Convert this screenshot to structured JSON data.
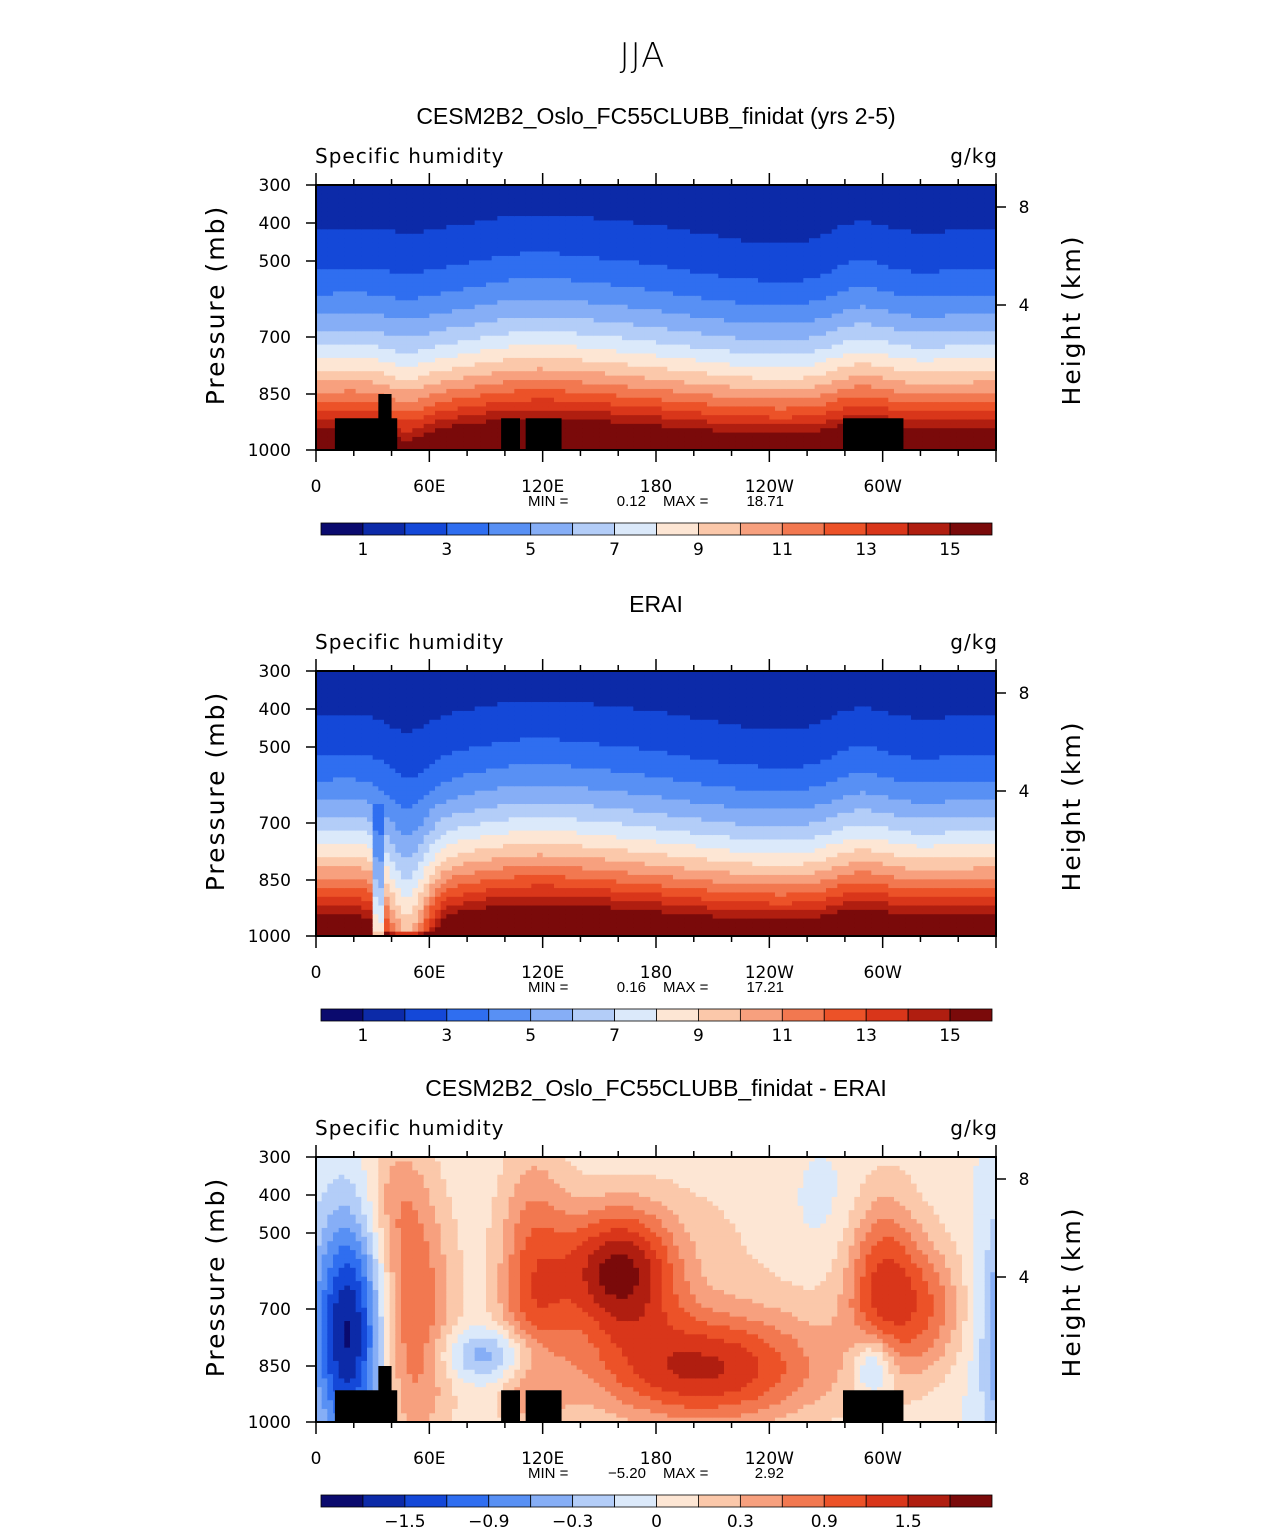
{
  "figure": {
    "season": "JJA"
  },
  "chart_data": [
    {
      "type": "heatmap",
      "title": "CESM2B2_Oslo_FC55CLUBB_finidat (yrs 2-5)",
      "variable": "Specific humidity",
      "units": "g/kg",
      "xlabel": "",
      "ylabel": "Pressure (mb)",
      "y2label": "Height (km)",
      "x_ticks": [
        "0",
        "60E",
        "120E",
        "180",
        "120W",
        "60W"
      ],
      "y_ticks": [
        "300",
        "400",
        "500",
        "700",
        "850",
        "1000"
      ],
      "y2_ticks": [
        "8",
        "4"
      ],
      "xlim_deg": [
        0,
        360
      ],
      "ylim_mb": [
        1000,
        300
      ],
      "min_label": "MIN =",
      "min_value": "0.12",
      "max_label": "MAX =",
      "max_value": "18.71",
      "colorbar_labels": [
        "1",
        "3",
        "5",
        "7",
        "9",
        "11",
        "13",
        "15"
      ],
      "levels": [
        0.5,
        1,
        2,
        3,
        4,
        5,
        6,
        7,
        8,
        9,
        10,
        11,
        12,
        13,
        14,
        15
      ]
    },
    {
      "type": "heatmap",
      "title": "ERAI",
      "variable": "Specific humidity",
      "units": "g/kg",
      "xlabel": "",
      "ylabel": "Pressure (mb)",
      "y2label": "Height (km)",
      "x_ticks": [
        "0",
        "60E",
        "120E",
        "180",
        "120W",
        "60W"
      ],
      "y_ticks": [
        "300",
        "400",
        "500",
        "700",
        "850",
        "1000"
      ],
      "y2_ticks": [
        "8",
        "4"
      ],
      "xlim_deg": [
        0,
        360
      ],
      "ylim_mb": [
        1000,
        300
      ],
      "min_label": "MIN =",
      "min_value": "0.16",
      "max_label": "MAX =",
      "max_value": "17.21",
      "colorbar_labels": [
        "1",
        "3",
        "5",
        "7",
        "9",
        "11",
        "13",
        "15"
      ],
      "levels": [
        0.5,
        1,
        2,
        3,
        4,
        5,
        6,
        7,
        8,
        9,
        10,
        11,
        12,
        13,
        14,
        15
      ]
    },
    {
      "type": "heatmap",
      "title": "CESM2B2_Oslo_FC55CLUBB_finidat - ERAI",
      "variable": "Specific humidity",
      "units": "g/kg",
      "xlabel": "",
      "ylabel": "Pressure (mb)",
      "y2label": "Height (km)",
      "x_ticks": [
        "0",
        "60E",
        "120E",
        "180",
        "120W",
        "60W"
      ],
      "y_ticks": [
        "300",
        "400",
        "500",
        "700",
        "850",
        "1000"
      ],
      "y2_ticks": [
        "8",
        "4"
      ],
      "xlim_deg": [
        0,
        360
      ],
      "ylim_mb": [
        1000,
        300
      ],
      "min_label": "MIN =",
      "min_value": "−5.20",
      "max_label": "MAX =",
      "max_value": "2.92",
      "colorbar_labels": [
        "−1.5",
        "−0.9",
        "−0.3",
        "0",
        "0.3",
        "0.9",
        "1.5"
      ],
      "levels": [
        -2.1,
        -1.8,
        -1.5,
        -1.2,
        -0.9,
        -0.6,
        -0.3,
        0,
        0.3,
        0.6,
        0.9,
        1.2,
        1.5,
        1.8,
        2.1
      ]
    }
  ],
  "palette": [
    "#0a0a6e",
    "#0c2aa8",
    "#1448d8",
    "#2f6ef0",
    "#5890f4",
    "#86aef6",
    "#b3cdf8",
    "#dbe9fa",
    "#fde6d4",
    "#fbc8aa",
    "#f7a07e",
    "#f27850",
    "#ec5228",
    "#d9361a",
    "#b01e10",
    "#7a0a0a"
  ]
}
